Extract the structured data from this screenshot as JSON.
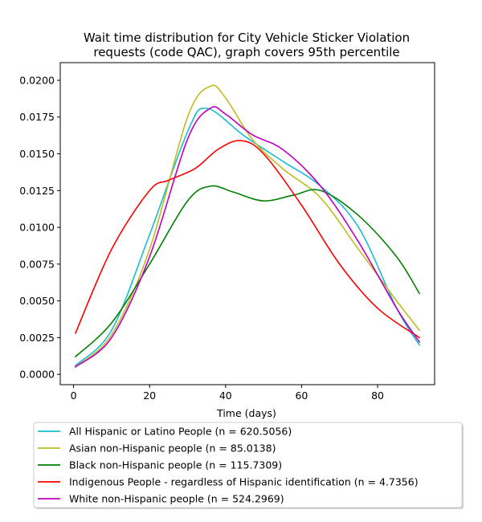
{
  "chart_data": {
    "type": "line",
    "title": [
      "Wait time distribution  for City Vehicle Sticker Violation",
      "requests (code QAC), graph covers 95th percentile"
    ],
    "xlabel": "Time (days)",
    "ylabel": "",
    "xlim": [
      -3.5,
      95
    ],
    "ylim": [
      -0.0007,
      0.0212
    ],
    "xticks": [
      0,
      20,
      40,
      60,
      80
    ],
    "xtick_labels": [
      "0",
      "20",
      "40",
      "60",
      "80"
    ],
    "yticks": [
      0.0,
      0.0025,
      0.005,
      0.0075,
      0.01,
      0.0125,
      0.015,
      0.0175,
      0.02
    ],
    "ytick_labels": [
      "0.0000",
      "0.0025",
      "0.0050",
      "0.0075",
      "0.0100",
      "0.0125",
      "0.0150",
      "0.0175",
      "0.0200"
    ],
    "grid": false,
    "legend_position": "below",
    "series": [
      {
        "name": "All Hispanic or Latino People (n = 620.5056)",
        "color": "#17becf",
        "x": [
          0.5,
          10,
          20,
          30,
          35,
          45,
          55,
          65,
          75,
          85,
          91
        ],
        "y": [
          0.0006,
          0.003,
          0.0095,
          0.0165,
          0.0181,
          0.0162,
          0.0145,
          0.0128,
          0.01,
          0.0045,
          0.002
        ]
      },
      {
        "name": "Asian non-Hispanic people (n = 85.0138)",
        "color": "#bcbd22",
        "x": [
          0.5,
          10,
          20,
          30,
          36,
          40,
          47,
          55,
          65,
          75,
          85,
          91
        ],
        "y": [
          0.0005,
          0.0027,
          0.0085,
          0.0175,
          0.0196,
          0.0188,
          0.016,
          0.014,
          0.012,
          0.0085,
          0.005,
          0.003
        ]
      },
      {
        "name": "Black non-Hispanic people (n = 115.7309)",
        "color": "#008000",
        "x": [
          0.5,
          10,
          20,
          30,
          36,
          42,
          50,
          58,
          65,
          75,
          85,
          91
        ],
        "y": [
          0.0012,
          0.0035,
          0.0075,
          0.0118,
          0.0128,
          0.0124,
          0.0118,
          0.0122,
          0.0125,
          0.0108,
          0.008,
          0.0055
        ]
      },
      {
        "name": "Indigenous People - regardless of Hispanic identification (n = 4.7356)",
        "color": "#ff0000",
        "x": [
          0.5,
          10,
          20,
          25,
          32,
          38,
          44,
          50,
          60,
          70,
          80,
          91
        ],
        "y": [
          0.0028,
          0.0085,
          0.0125,
          0.0132,
          0.014,
          0.0153,
          0.0159,
          0.015,
          0.0115,
          0.0075,
          0.0045,
          0.0025
        ]
      },
      {
        "name": "White non-Hispanic people (n = 524.2969)",
        "color": "#bf00bf",
        "x": [
          0.5,
          10,
          20,
          30,
          36,
          40,
          47,
          55,
          65,
          75,
          85,
          91
        ],
        "y": [
          0.0005,
          0.0025,
          0.008,
          0.016,
          0.0181,
          0.0177,
          0.0163,
          0.0153,
          0.0128,
          0.009,
          0.0045,
          0.0022
        ]
      }
    ]
  }
}
